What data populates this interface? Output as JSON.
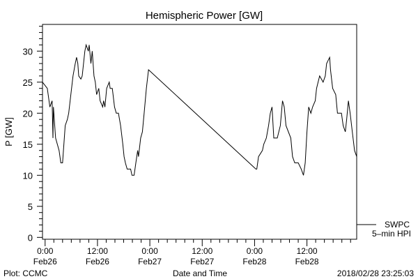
{
  "chart_data": {
    "type": "line",
    "title": "Hemispheric Power [GW]",
    "xlabel": "Date and Time",
    "ylabel": "P [GW]",
    "xunits": "hours since 0:00 Feb26",
    "xlim": [
      -0.6,
      71.4
    ],
    "ylim": [
      -0.3,
      34.3
    ],
    "yticks": [
      0,
      5,
      10,
      15,
      20,
      25,
      30
    ],
    "xticks": [
      {
        "hour": 0,
        "time": "0:00",
        "date": "Feb26"
      },
      {
        "hour": 12,
        "time": "12:00",
        "date": "Feb26"
      },
      {
        "hour": 24,
        "time": "0:00",
        "date": "Feb27"
      },
      {
        "hour": 36,
        "time": "12:00",
        "date": "Feb27"
      },
      {
        "hour": 48,
        "time": "0:00",
        "date": "Feb28"
      },
      {
        "hour": 60,
        "time": "12:00",
        "date": "Feb28"
      }
    ],
    "legend": {
      "placement": "right-bottom",
      "entries": [
        "SWPC",
        "5–min HPI"
      ]
    },
    "series": [
      {
        "name": "SWPC 5-min HPI",
        "x": [
          -0.6,
          0.5,
          1.1,
          1.6,
          1.8,
          1.9,
          2.4,
          3.2,
          3.6,
          4.0,
          4.3,
          4.6,
          5.1,
          5.4,
          5.9,
          6.4,
          6.9,
          7.2,
          7.5,
          7.7,
          8.2,
          8.5,
          9.1,
          9.4,
          9.9,
          10.1,
          10.5,
          10.8,
          11.2,
          11.5,
          11.8,
          12.3,
          12.6,
          13.2,
          13.4,
          13.7,
          14.1,
          14.7,
          14.9,
          15.4,
          15.9,
          16.3,
          16.8,
          17.3,
          17.8,
          18.1,
          18.4,
          18.8,
          19.6,
          19.9,
          20.4,
          20.8,
          21.2,
          21.4,
          21.9,
          22.3,
          22.7,
          23.2,
          23.7,
          48.3,
          48.5,
          48.9,
          49.8,
          50.1,
          50.7,
          51.2,
          51.6,
          52.0,
          52.4,
          53.2,
          53.9,
          54.4,
          54.8,
          55.2,
          56.3,
          56.7,
          57.2,
          58.0,
          58.7,
          59.2,
          59.6,
          60.0,
          60.4,
          60.9,
          61.3,
          61.9,
          62.2,
          62.9,
          63.7,
          64.2,
          64.5,
          65.2,
          65.4,
          65.9,
          66.6,
          67.0,
          67.9,
          68.3,
          68.8,
          69.1,
          69.5,
          69.9,
          70.4,
          70.9,
          71.4
        ],
        "y": [
          25,
          24,
          21,
          22,
          16,
          21,
          16,
          14,
          12,
          12,
          15,
          18,
          19,
          20,
          23,
          26,
          28,
          29,
          28,
          26,
          25.5,
          26,
          30,
          31,
          30,
          31,
          28,
          30,
          26,
          25,
          23,
          24,
          22,
          21,
          22,
          21,
          24,
          25,
          24,
          24,
          21,
          20,
          20,
          18,
          15,
          13,
          12,
          11,
          11,
          10,
          10,
          12,
          14,
          13,
          16,
          17,
          20,
          24,
          27,
          11,
          11,
          13,
          14,
          15,
          16,
          18,
          20,
          21,
          16,
          16,
          18,
          22,
          21,
          18,
          16,
          13,
          12,
          12,
          11,
          10,
          12,
          17,
          21,
          20,
          21,
          22,
          24,
          26,
          25,
          26,
          28,
          29,
          27,
          24,
          23,
          20,
          20,
          18,
          17,
          19,
          22,
          20,
          17,
          14,
          13
        ]
      }
    ]
  },
  "footer": {
    "left": "Plot: CCMC",
    "right": "2018/02/28 23:25:03"
  }
}
